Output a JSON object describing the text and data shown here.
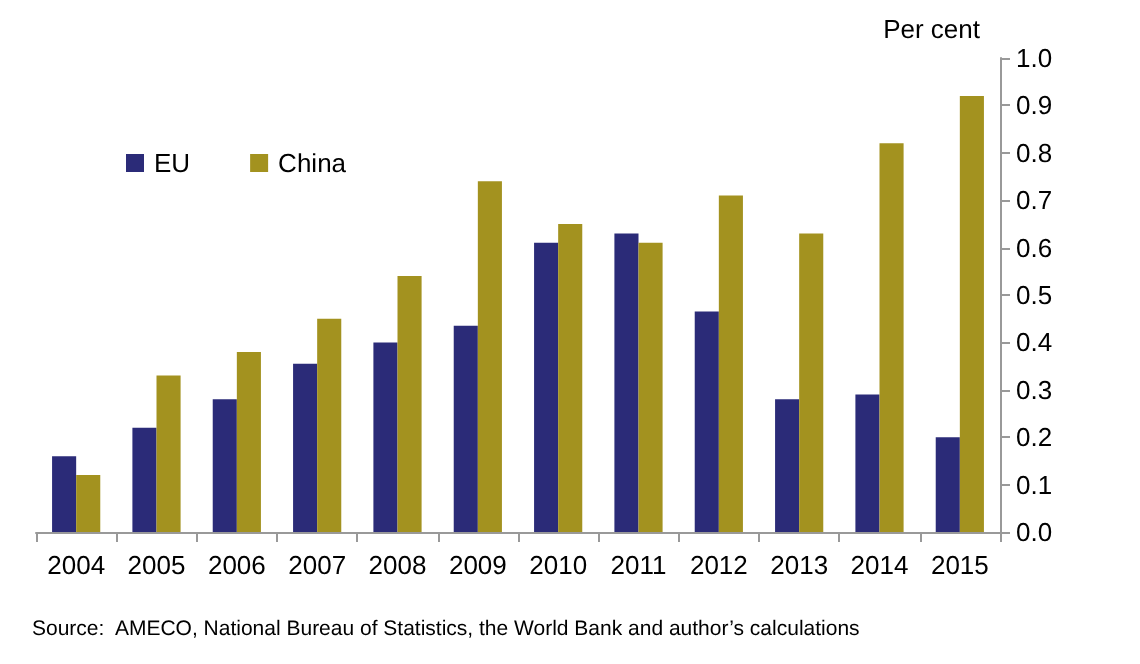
{
  "chart_data": {
    "type": "bar",
    "ylabel": "Per cent",
    "categories": [
      "2004",
      "2005",
      "2006",
      "2007",
      "2008",
      "2009",
      "2010",
      "2011",
      "2012",
      "2013",
      "2014",
      "2015"
    ],
    "series": [
      {
        "name": "EU",
        "color": "#2b2b78",
        "values": [
          0.16,
          0.22,
          0.28,
          0.355,
          0.4,
          0.435,
          0.61,
          0.63,
          0.465,
          0.28,
          0.29,
          0.2
        ]
      },
      {
        "name": "China",
        "color": "#a3921f",
        "values": [
          0.12,
          0.33,
          0.38,
          0.45,
          0.54,
          0.74,
          0.65,
          0.61,
          0.71,
          0.63,
          0.82,
          0.92
        ]
      }
    ],
    "ylim": [
      0,
      1
    ],
    "yticks": [
      {
        "value": 0,
        "label": "0.0"
      },
      {
        "value": 0.1,
        "label": "0.1"
      },
      {
        "value": 0.2,
        "label": "0.2"
      },
      {
        "value": 0.3,
        "label": "0.3"
      },
      {
        "value": 0.4,
        "label": "0.4"
      },
      {
        "value": 0.5,
        "label": "0.5"
      },
      {
        "value": 0.6,
        "label": "0.6"
      },
      {
        "value": 0.7,
        "label": "0.7"
      },
      {
        "value": 0.8,
        "label": "0.8"
      },
      {
        "value": 0.9,
        "label": "0.9"
      },
      {
        "value": 1,
        "label": "1.0"
      }
    ],
    "grid": false,
    "legend": "top left",
    "annotations": [
      "Source:  AMECO, National Bureau of Statistics, the World Bank and author’s calculations"
    ]
  }
}
